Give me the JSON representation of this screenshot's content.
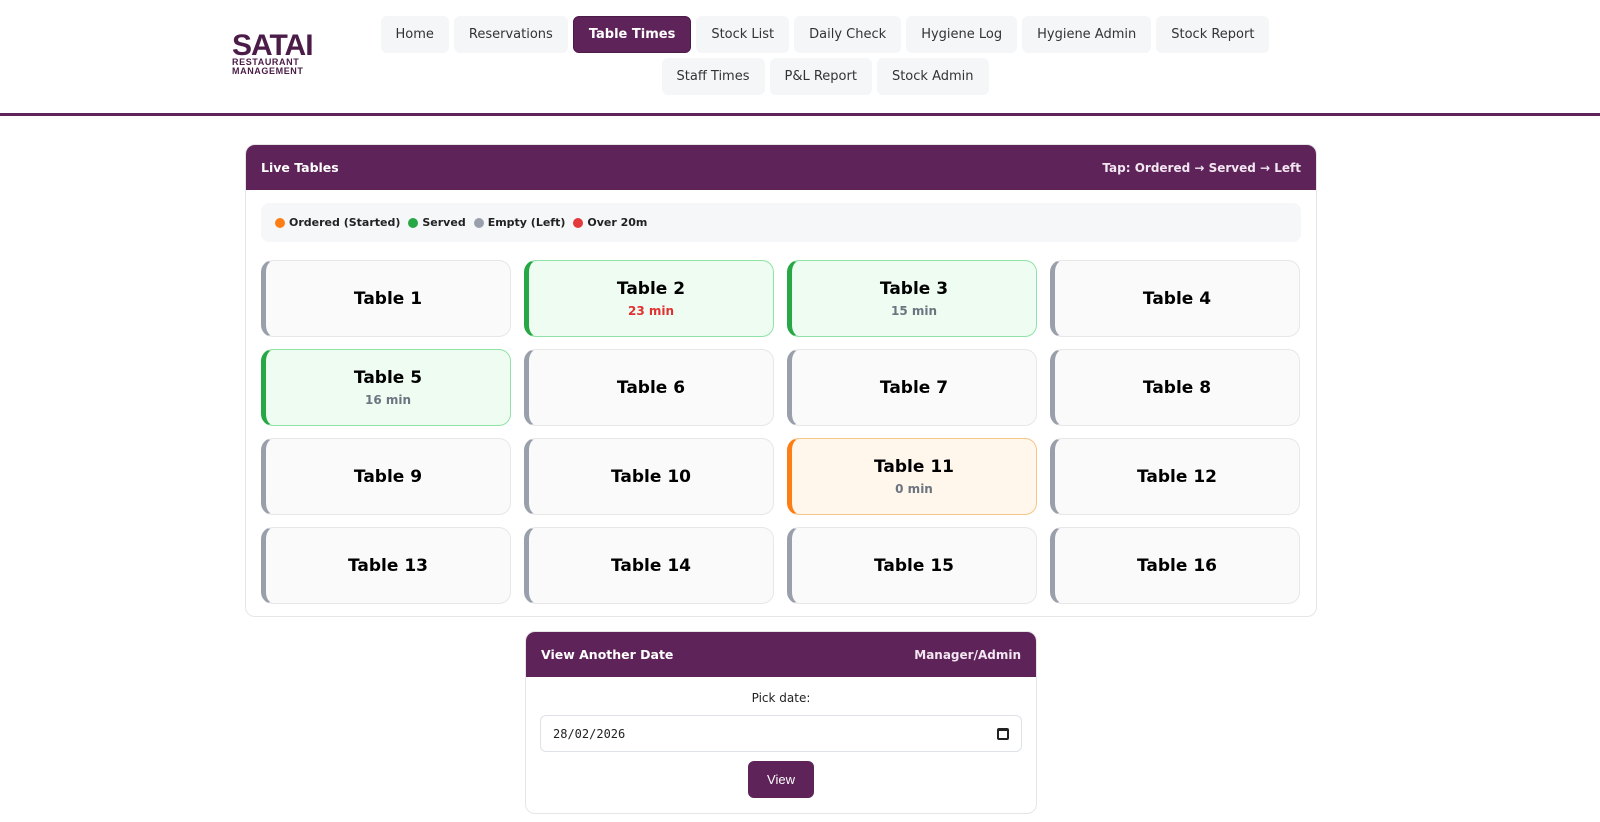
{
  "logo": {
    "brand": "SATAI",
    "line1": "RESTAURANT",
    "line2": "MANAGEMENT"
  },
  "nav": {
    "items": [
      {
        "label": "Home"
      },
      {
        "label": "Reservations"
      },
      {
        "label": "Table Times",
        "active": true
      },
      {
        "label": "Stock List"
      },
      {
        "label": "Daily Check"
      },
      {
        "label": "Hygiene Log"
      },
      {
        "label": "Hygiene Admin"
      },
      {
        "label": "Stock Report"
      },
      {
        "label": "Staff Times"
      },
      {
        "label": "P&L Report"
      },
      {
        "label": "Stock Admin"
      }
    ]
  },
  "live": {
    "title": "Live Tables",
    "hint": "Tap: Ordered → Served → Left",
    "legend": [
      {
        "label": "Ordered (Started)",
        "color": "#fd7e14"
      },
      {
        "label": "Served",
        "color": "#28a745"
      },
      {
        "label": "Empty (Left)",
        "color": "#9aa0ab"
      },
      {
        "label": "Over 20m",
        "color": "#e5383b"
      }
    ],
    "tables": [
      {
        "name": "Table 1",
        "status": "empty",
        "time": ""
      },
      {
        "name": "Table 2",
        "status": "served",
        "time": "23 min",
        "over": true
      },
      {
        "name": "Table 3",
        "status": "served",
        "time": "15 min"
      },
      {
        "name": "Table 4",
        "status": "empty",
        "time": ""
      },
      {
        "name": "Table 5",
        "status": "served",
        "time": "16 min"
      },
      {
        "name": "Table 6",
        "status": "empty",
        "time": ""
      },
      {
        "name": "Table 7",
        "status": "empty",
        "time": ""
      },
      {
        "name": "Table 8",
        "status": "empty",
        "time": ""
      },
      {
        "name": "Table 9",
        "status": "empty",
        "time": ""
      },
      {
        "name": "Table 10",
        "status": "empty",
        "time": ""
      },
      {
        "name": "Table 11",
        "status": "ordered",
        "time": "0 min"
      },
      {
        "name": "Table 12",
        "status": "empty",
        "time": ""
      },
      {
        "name": "Table 13",
        "status": "empty",
        "time": ""
      },
      {
        "name": "Table 14",
        "status": "empty",
        "time": ""
      },
      {
        "name": "Table 15",
        "status": "empty",
        "time": ""
      },
      {
        "name": "Table 16",
        "status": "empty",
        "time": ""
      }
    ]
  },
  "date_view": {
    "title": "View Another Date",
    "role": "Manager/Admin",
    "pick_label": "Pick date:",
    "date_value": "28/02/2026",
    "view_label": "View"
  },
  "colors": {
    "brand": "#5e2359",
    "served": "#28a745",
    "ordered": "#fd7e14",
    "empty": "#9aa0ab",
    "over": "#e5383b"
  }
}
